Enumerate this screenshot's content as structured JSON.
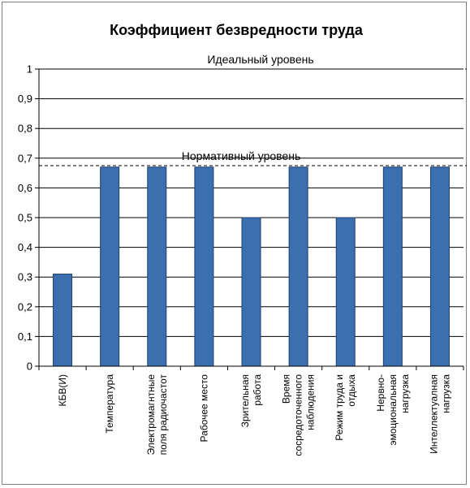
{
  "chart_data": {
    "type": "bar",
    "title": "Коэффициент безвредности труда",
    "categories": [
      [
        "КБВ(И)"
      ],
      [
        "Температура"
      ],
      [
        "Электромагнтные",
        "поля радиочастот"
      ],
      [
        "Рабочее место"
      ],
      [
        "Зрительная",
        "работа"
      ],
      [
        "Время",
        "сосредоточенного",
        "наблюдения"
      ],
      [
        "Режим труда и",
        "отдыха"
      ],
      [
        "Нервно-",
        "эмоциональная",
        "нагрузка"
      ],
      [
        "Интеллектуалная",
        "нагрузка"
      ]
    ],
    "values": [
      0.31,
      0.67,
      0.67,
      0.67,
      0.5,
      0.67,
      0.5,
      0.67,
      0.67
    ],
    "ylim": [
      0,
      1
    ],
    "yticks": [
      "0",
      "0,1",
      "0,2",
      "0,3",
      "0,4",
      "0,5",
      "0,6",
      "0,7",
      "0,8",
      "0,9",
      "1"
    ],
    "grid": true,
    "bar_color": "#3a6fb0",
    "bar_edge_color": "#1f3f6e",
    "reference_lines": [
      {
        "label": "Идеальный уровень",
        "value": 1.0
      },
      {
        "label": "Нормативный уровень",
        "value": 0.675
      }
    ]
  }
}
